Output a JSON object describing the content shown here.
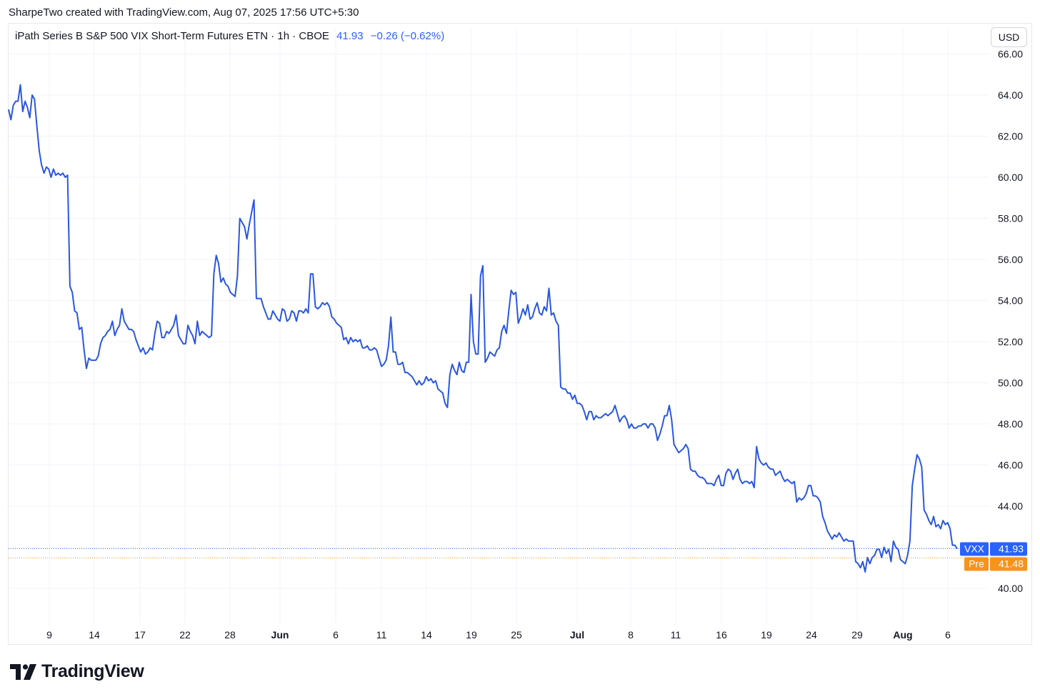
{
  "header": {
    "caption": "SharpeTwo created with TradingView.com, Aug 07, 2025 17:56 UTC+5:30"
  },
  "legend": {
    "symbol_text": "iPath Series B S&P 500 VIX Short-Term Futures ETN · 1h · CBOE",
    "last_value": "41.93",
    "change": "−0.26 (−0.62%)"
  },
  "currency_button": "USD",
  "brand": {
    "name": "TradingView"
  },
  "colors": {
    "line": "#2a57e0",
    "price_tag": "#2962ff",
    "premarket": "#f7931a",
    "grid": "#f0f3fa"
  },
  "chart_data": {
    "type": "line",
    "title": "iPath Series B S&P 500 VIX Short-Term Futures ETN · 1h · CBOE",
    "xlabel": "",
    "ylabel": "",
    "ylim": [
      39.5,
      66.3
    ],
    "y_ticks": [
      "40.00",
      "42.00",
      "44.00",
      "46.00",
      "48.00",
      "50.00",
      "52.00",
      "54.00",
      "56.00",
      "58.00",
      "60.00",
      "62.00",
      "64.00",
      "66.00"
    ],
    "x_tick_labels": [
      "9",
      "14",
      "17",
      "22",
      "28",
      "Jun",
      "6",
      "11",
      "14",
      "19",
      "25",
      "Jul",
      "8",
      "11",
      "16",
      "19",
      "24",
      "29",
      "Aug",
      "6"
    ],
    "x_tick_bold": [
      "Jun",
      "Jul",
      "Aug"
    ],
    "grid": true,
    "series": [
      {
        "name": "VXX",
        "values": [
          63.3,
          62.8,
          63.5,
          63.7,
          63.7,
          64.5,
          63.2,
          63.7,
          63.4,
          62.9,
          64.0,
          63.8,
          62.5,
          61.3,
          60.6,
          60.2,
          60.5,
          60.4,
          60.0,
          60.4,
          60.1,
          60.2,
          60.1,
          60.2,
          60.0,
          60.1,
          54.7,
          54.4,
          53.5,
          53.4,
          52.6,
          52.7,
          51.6,
          50.7,
          51.2,
          51.1,
          51.1,
          51.1,
          51.3,
          51.9,
          52.2,
          52.3,
          52.5,
          52.6,
          53.0,
          52.3,
          52.6,
          52.8,
          53.6,
          53.0,
          52.8,
          52.6,
          52.6,
          52.5,
          52.1,
          51.8,
          51.5,
          51.7,
          51.4,
          51.5,
          51.7,
          51.6,
          52.4,
          53.0,
          52.9,
          52.2,
          52.2,
          52.5,
          52.4,
          52.6,
          52.8,
          53.3,
          52.3,
          52.1,
          51.9,
          51.9,
          52.8,
          52.5,
          52.3,
          51.9,
          53.0,
          52.3,
          52.5,
          52.4,
          52.3,
          52.2,
          52.3,
          55.3,
          56.2,
          55.8,
          54.9,
          55.1,
          54.8,
          54.7,
          54.4,
          54.3,
          54.2,
          55.2,
          58.0,
          57.8,
          57.6,
          57.0,
          57.7,
          58.3,
          58.9,
          54.1,
          54.1,
          54.1,
          53.7,
          53.4,
          53.1,
          53.1,
          53.5,
          53.3,
          53.1,
          53.0,
          53.6,
          53.5,
          53.0,
          53.1,
          53.5,
          53.4,
          53.0,
          53.5,
          53.5,
          53.4,
          53.6,
          53.4,
          55.3,
          55.3,
          53.7,
          53.6,
          53.7,
          53.9,
          53.8,
          53.9,
          53.7,
          53.2,
          53.1,
          52.9,
          52.8,
          52.7,
          52.1,
          52.2,
          51.9,
          52.2,
          52.0,
          52.1,
          52.0,
          52.1,
          51.7,
          51.7,
          51.8,
          51.6,
          51.6,
          51.7,
          51.6,
          51.2,
          50.8,
          50.9,
          51.1,
          51.8,
          53.2,
          51.5,
          51.5,
          50.9,
          50.9,
          51.0,
          50.5,
          50.5,
          50.4,
          50.3,
          50.1,
          49.9,
          50.1,
          49.9,
          50.0,
          50.3,
          50.1,
          50.2,
          50.0,
          50.1,
          49.7,
          49.6,
          49.5,
          49.0,
          48.8,
          50.4,
          50.9,
          50.6,
          50.4,
          51.0,
          50.6,
          50.5,
          51.0,
          51.0,
          54.3,
          52.0,
          51.4,
          51.4,
          55.2,
          55.7,
          51.0,
          51.2,
          51.5,
          51.4,
          51.3,
          51.6,
          51.7,
          52.5,
          52.8,
          52.4,
          53.5,
          54.5,
          54.3,
          54.4,
          52.9,
          53.2,
          53.6,
          53.3,
          53.8,
          53.1,
          53.2,
          53.6,
          53.9,
          53.4,
          53.3,
          53.7,
          53.5,
          54.6,
          53.3,
          53.4,
          53.0,
          52.8,
          49.8,
          49.7,
          49.7,
          49.5,
          49.5,
          49.2,
          49.4,
          49.0,
          49.0,
          48.9,
          48.6,
          48.2,
          48.6,
          48.6,
          48.2,
          48.4,
          48.3,
          48.3,
          48.4,
          48.5,
          48.4,
          48.5,
          48.6,
          48.9,
          48.5,
          48.1,
          48.3,
          48.4,
          48.2,
          47.8,
          48.0,
          47.8,
          47.8,
          47.9,
          47.9,
          48.0,
          48.0,
          47.8,
          48.0,
          48.0,
          47.8,
          47.2,
          47.5,
          47.9,
          48.4,
          48.4,
          48.9,
          48.2,
          47.0,
          46.8,
          46.6,
          46.7,
          46.8,
          47.0,
          46.8,
          45.8,
          45.7,
          45.7,
          45.5,
          45.4,
          45.4,
          45.3,
          45.1,
          45.1,
          45.1,
          45.0,
          45.3,
          45.5,
          45.0,
          45.0,
          45.6,
          45.8,
          45.7,
          45.3,
          45.6,
          45.8,
          45.3,
          45.1,
          45.2,
          45.2,
          45.1,
          45.2,
          44.9,
          46.9,
          46.3,
          46.1,
          46.0,
          46.1,
          45.9,
          45.8,
          45.8,
          45.5,
          45.6,
          45.7,
          45.4,
          45.2,
          45.3,
          45.2,
          45.1,
          45.2,
          44.2,
          44.4,
          44.3,
          44.4,
          44.6,
          45.0,
          45.0,
          44.5,
          44.5,
          44.4,
          44.2,
          43.5,
          43.2,
          42.8,
          42.6,
          42.4,
          42.6,
          42.5,
          42.7,
          42.5,
          42.3,
          42.4,
          42.3,
          42.3,
          42.3,
          41.3,
          41.2,
          41.0,
          41.3,
          40.8,
          41.5,
          41.2,
          41.5,
          41.6,
          41.9,
          41.9,
          41.5,
          42.0,
          41.7,
          41.9,
          41.3,
          42.3,
          42.0,
          41.9,
          41.4,
          41.3,
          41.2,
          41.6,
          42.3,
          45.0,
          45.8,
          46.5,
          46.3,
          45.9,
          43.8,
          43.6,
          43.3,
          43.1,
          43.5,
          43.0,
          43.1,
          42.9,
          43.3,
          43.1,
          43.2,
          42.9,
          42.1,
          42.1,
          41.93
        ]
      },
      {
        "name": "Pre",
        "values": [
          41.48
        ]
      }
    ],
    "price_labels": [
      {
        "name": "VXX",
        "value": "41.93"
      },
      {
        "name": "Pre",
        "value": "41.48"
      }
    ]
  }
}
